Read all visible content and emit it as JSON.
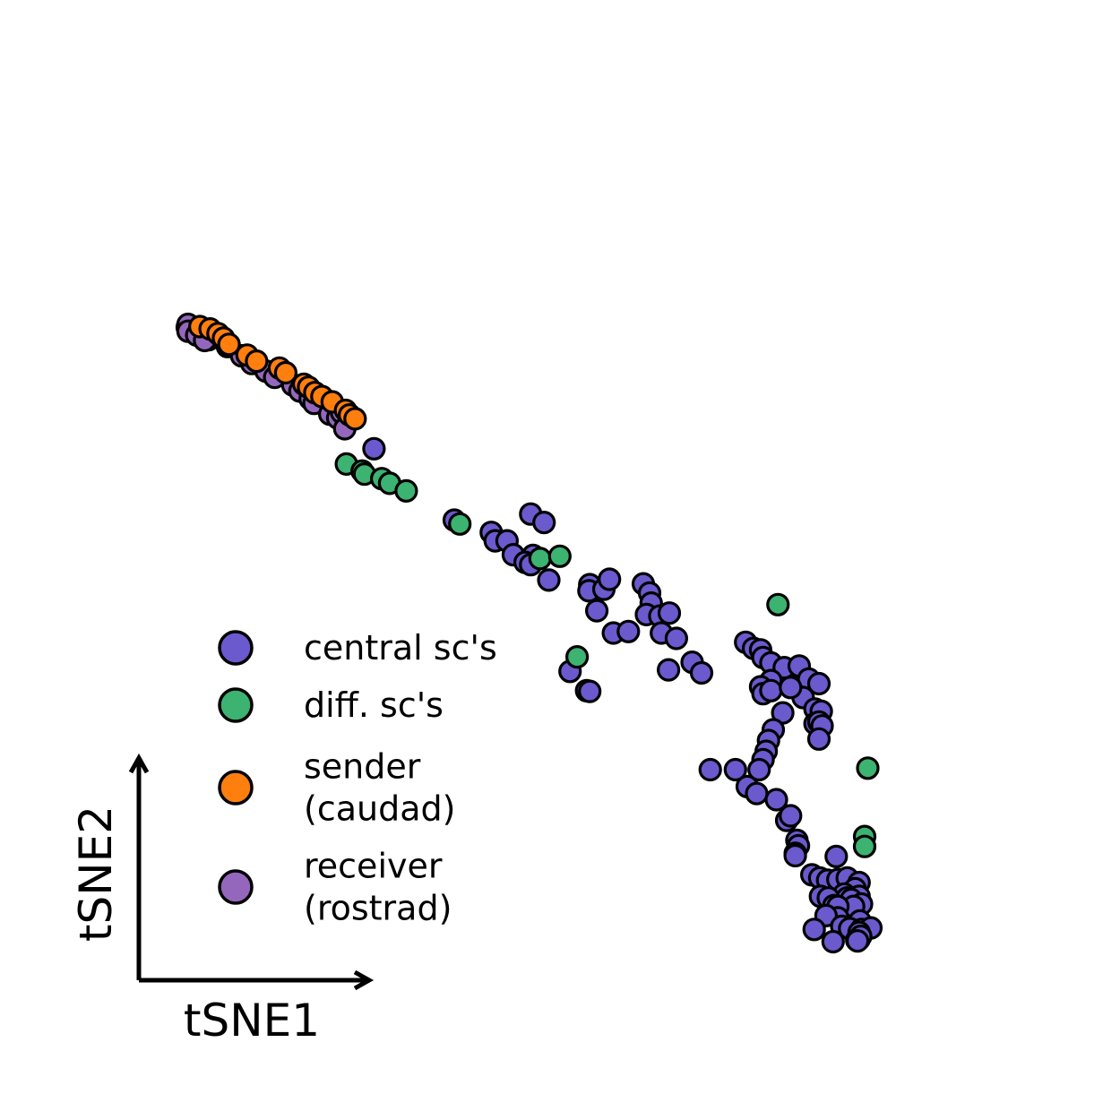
{
  "chart_data": {
    "type": "scatter",
    "title": "",
    "xlabel": "tSNE1",
    "ylabel": "tSNE2",
    "xlim": [
      0,
      100
    ],
    "ylim": [
      0,
      100
    ],
    "grid": false,
    "legend_position": "lower-left",
    "colors": {
      "central": "#6a5acd",
      "diff": "#3cb371",
      "sender": "#ff7f0e",
      "receiver": "#9467bd"
    },
    "series": [
      {
        "key": "central",
        "name": "central sc's",
        "name_lines": [
          "central sc's"
        ],
        "points": [
          [
            2.2,
            79.3
          ],
          [
            3.5,
            78.4
          ],
          [
            0.8,
            80.0
          ],
          [
            24.5,
            64.2
          ],
          [
            34.7,
            54.9
          ],
          [
            39.4,
            53.3
          ],
          [
            39.9,
            52.2
          ],
          [
            41.4,
            52.2
          ],
          [
            44.4,
            55.7
          ],
          [
            46.1,
            54.6
          ],
          [
            42.2,
            50.4
          ],
          [
            44.7,
            50.3
          ],
          [
            43.7,
            49.4
          ],
          [
            44.4,
            49.1
          ],
          [
            46.7,
            47.1
          ],
          [
            51.9,
            46.5
          ],
          [
            51.8,
            45.7
          ],
          [
            53.7,
            45.9
          ],
          [
            54.4,
            47.2
          ],
          [
            52.8,
            43.1
          ],
          [
            54.9,
            40.2
          ],
          [
            56.8,
            40.4
          ],
          [
            58.7,
            46.6
          ],
          [
            59.5,
            45.4
          ],
          [
            59.7,
            44.1
          ],
          [
            59.1,
            42.6
          ],
          [
            60.8,
            42.4
          ],
          [
            62.0,
            42.8
          ],
          [
            61.0,
            40.2
          ],
          [
            62.9,
            39.5
          ],
          [
            49.4,
            35.2
          ],
          [
            51.5,
            32.7
          ],
          [
            51.9,
            32.6
          ],
          [
            61.9,
            35.4
          ],
          [
            64.9,
            36.4
          ],
          [
            66.1,
            35.0
          ],
          [
            71.7,
            39.0
          ],
          [
            72.7,
            38.2
          ],
          [
            73.6,
            38.0
          ],
          [
            73.9,
            37.0
          ],
          [
            74.9,
            36.3
          ],
          [
            76.6,
            35.7
          ],
          [
            78.5,
            35.9
          ],
          [
            74.9,
            34.0
          ],
          [
            73.6,
            33.2
          ],
          [
            73.9,
            32.3
          ],
          [
            74.9,
            32.7
          ],
          [
            78.3,
            33.2
          ],
          [
            79.7,
            34.2
          ],
          [
            81.0,
            33.6
          ],
          [
            79.0,
            31.8
          ],
          [
            77.4,
            33.1
          ],
          [
            80.5,
            30.3
          ],
          [
            81.3,
            30.0
          ],
          [
            76.4,
            29.8
          ],
          [
            80.5,
            28.4
          ],
          [
            81.0,
            28.6
          ],
          [
            81.4,
            28.1
          ],
          [
            81.0,
            26.4
          ],
          [
            75.2,
            27.6
          ],
          [
            74.6,
            26.2
          ],
          [
            74.3,
            24.8
          ],
          [
            67.2,
            22.4
          ],
          [
            70.4,
            22.4
          ],
          [
            73.9,
            23.7
          ],
          [
            73.4,
            22.4
          ],
          [
            71.9,
            20.2
          ],
          [
            73.1,
            19.3
          ],
          [
            75.6,
            18.5
          ],
          [
            76.9,
            15.8
          ],
          [
            77.4,
            16.4
          ],
          [
            78.2,
            13.2
          ],
          [
            78.4,
            12.5
          ],
          [
            78.0,
            11.5
          ],
          [
            78.0,
            11.2
          ],
          [
            83.2,
            11.1
          ],
          [
            80.1,
            8.7
          ],
          [
            81.1,
            8.3
          ],
          [
            82.1,
            8.0
          ],
          [
            83.4,
            8.1
          ],
          [
            84.6,
            8.3
          ],
          [
            86.1,
            7.7
          ],
          [
            85.6,
            6.9
          ],
          [
            84.2,
            6.2
          ],
          [
            84.6,
            5.7
          ],
          [
            86.1,
            5.9
          ],
          [
            81.2,
            5.9
          ],
          [
            82.2,
            5.7
          ],
          [
            85.1,
            5.5
          ],
          [
            86.4,
            4.9
          ],
          [
            85.4,
            4.6
          ],
          [
            82.9,
            4.7
          ],
          [
            83.4,
            4.6
          ],
          [
            83.4,
            3.1
          ],
          [
            81.9,
            3.4
          ],
          [
            86.2,
            2.7
          ],
          [
            83.9,
            2.0
          ],
          [
            84.9,
            1.7
          ],
          [
            86.4,
            1.6
          ],
          [
            87.6,
            1.8
          ],
          [
            80.4,
            1.6
          ],
          [
            86.1,
            1.2
          ],
          [
            85.8,
            0.2
          ],
          [
            86.1,
            0.3
          ],
          [
            86.3,
            0.7
          ],
          [
            82.8,
            0.0
          ],
          [
            85.9,
            0.1
          ]
        ]
      },
      {
        "key": "diff",
        "name": "diff. sc's",
        "name_lines": [
          "diff. sc's"
        ],
        "points": [
          [
            21.0,
            62.2
          ],
          [
            23.0,
            61.3
          ],
          [
            23.3,
            60.9
          ],
          [
            25.5,
            60.3
          ],
          [
            26.5,
            59.7
          ],
          [
            28.6,
            58.7
          ],
          [
            35.4,
            54.4
          ],
          [
            45.6,
            49.9
          ],
          [
            48.1,
            50.2
          ],
          [
            75.8,
            43.9
          ],
          [
            50.3,
            37.1
          ],
          [
            87.2,
            22.6
          ],
          [
            86.8,
            13.7
          ],
          [
            86.8,
            12.4
          ]
        ]
      },
      {
        "key": "sender",
        "name": "sender\n(caudad)",
        "name_lines": [
          "sender",
          "(caudad)"
        ],
        "points": [
          [
            2.4,
            80.1
          ],
          [
            3.7,
            79.8
          ],
          [
            4.7,
            79.2
          ],
          [
            5.4,
            78.6
          ],
          [
            6.1,
            77.8
          ],
          [
            8.4,
            76.4
          ],
          [
            9.6,
            75.6
          ],
          [
            12.5,
            74.7
          ],
          [
            13.3,
            74.1
          ],
          [
            15.6,
            72.6
          ],
          [
            16.2,
            72.2
          ],
          [
            17.0,
            71.5
          ],
          [
            17.9,
            71.0
          ],
          [
            19.2,
            70.3
          ],
          [
            20.9,
            69.2
          ],
          [
            21.4,
            68.6
          ],
          [
            22.1,
            68.1
          ]
        ]
      },
      {
        "key": "receiver",
        "name": "receiver\n(rostrad)",
        "name_lines": [
          "receiver",
          "(rostrad)"
        ],
        "points": [
          [
            0.9,
            80.4
          ],
          [
            0.9,
            79.5
          ],
          [
            2.0,
            79.0
          ],
          [
            3.0,
            78.3
          ],
          [
            5.9,
            77.5
          ],
          [
            7.7,
            76.3
          ],
          [
            9.0,
            75.3
          ],
          [
            10.8,
            74.3
          ],
          [
            11.9,
            73.5
          ],
          [
            14.2,
            72.5
          ],
          [
            15.1,
            71.7
          ],
          [
            16.4,
            70.7
          ],
          [
            16.9,
            70.1
          ],
          [
            18.9,
            68.7
          ],
          [
            19.9,
            68.2
          ],
          [
            20.4,
            68.9
          ],
          [
            20.8,
            66.8
          ]
        ]
      }
    ]
  }
}
